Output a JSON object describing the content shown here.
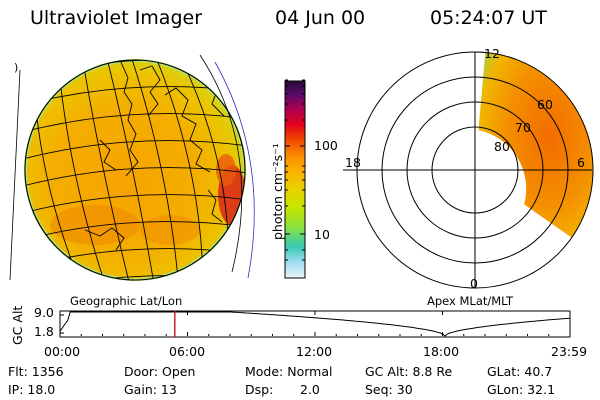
{
  "header": {
    "title": "Ultraviolet Imager",
    "date": "04 Jun 00",
    "time": "05:24:07 UT"
  },
  "globe_map": {
    "caption": "Geographic Lat/Lon",
    "edge_marker": ")"
  },
  "colorbar": {
    "unit_label": "photon cm⁻²s⁻¹",
    "ticks": [
      "100",
      "10"
    ],
    "scale": "log",
    "colors": [
      "#2a0a3a",
      "#5a0a6a",
      "#b4004e",
      "#e2001c",
      "#f04a00",
      "#fa8c00",
      "#fcb200",
      "#e8d200",
      "#c8e400",
      "#8ae23c",
      "#37c8b4",
      "#a0dcf0",
      "#ebf5fa"
    ]
  },
  "polar_plot": {
    "caption": "Apex MLat/MLT",
    "mlt_labels": [
      "12",
      "18",
      "6",
      "0"
    ],
    "mlat_labels": [
      "60",
      "70",
      "80"
    ]
  },
  "altitude_panel": {
    "ylabel": "GC Alt",
    "yticks": [
      "9.0",
      "1.8"
    ],
    "xticks": [
      "00:00",
      "06:00",
      "12:00",
      "18:00",
      "23:59"
    ],
    "cursor_time": "05:24:07",
    "cursor_color": "#d01010"
  },
  "status": {
    "flt": "Flt: 1356",
    "ip": "IP: 18.0",
    "door": "Door: Open",
    "gain": "Gain: 13",
    "mode": "Mode: Normal",
    "dsp_label": "Dsp:",
    "dsp_value": "2.0",
    "gc_alt": "GC Alt: 8.8 Re",
    "seq": "Seq: 30",
    "glat": "GLat: 40.7",
    "glon": "GLon: 32.1"
  }
}
